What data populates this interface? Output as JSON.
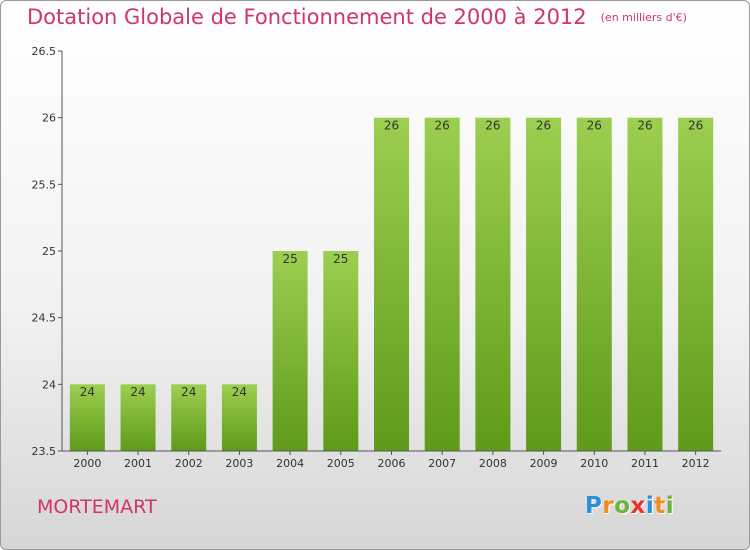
{
  "title": "Dotation Globale de Fonctionnement de 2000 à 2012",
  "unit_note": "(en milliers d'€)",
  "commune": "MORTEMART",
  "logo": {
    "letters": [
      "P",
      "r",
      "o",
      "x",
      "i",
      "t",
      "i"
    ],
    "colors": [
      "#2a8fd6",
      "#f28c1e",
      "#6cb33f",
      "#e8322e",
      "#2a8fd6",
      "#f28c1e",
      "#6cb33f"
    ]
  },
  "colors": {
    "bar_light": "#9ccf4f",
    "bar_dark": "#5f9a19",
    "title": "#d2336c"
  },
  "chart_data": {
    "type": "bar",
    "title": "Dotation Globale de Fonctionnement de 2000 à 2012",
    "xlabel": "",
    "ylabel": "",
    "categories": [
      "2000",
      "2001",
      "2002",
      "2003",
      "2004",
      "2005",
      "2006",
      "2007",
      "2008",
      "2009",
      "2010",
      "2011",
      "2012"
    ],
    "values": [
      24,
      24,
      24,
      24,
      25,
      25,
      26,
      26,
      26,
      26,
      26,
      26,
      26
    ],
    "ylim": [
      23.5,
      26.5
    ],
    "yticks": [
      23.5,
      24,
      24.5,
      25,
      25.5,
      26,
      26.5
    ],
    "ytick_labels": [
      "23.5",
      "24",
      "24.5",
      "25",
      "25.5",
      "26",
      "26.5"
    ],
    "grid": false
  }
}
